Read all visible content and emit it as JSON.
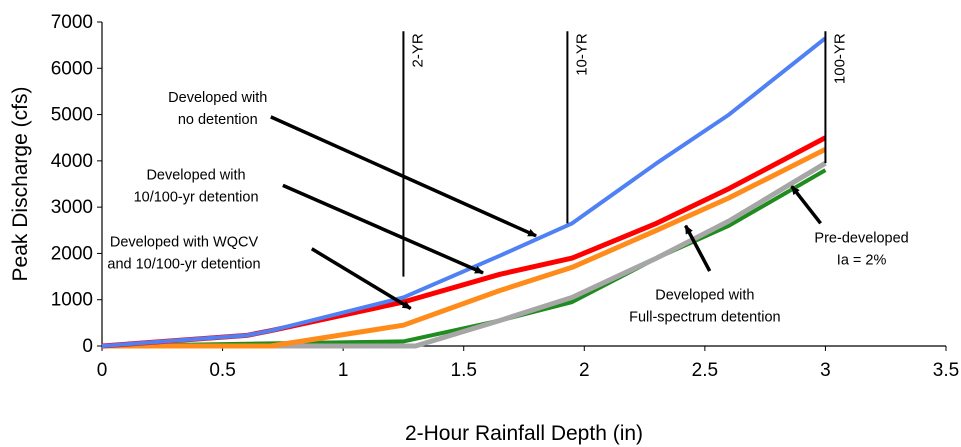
{
  "chart_data": {
    "type": "line",
    "xlabel": "2-Hour Rainfall Depth (in)",
    "ylabel": "Peak Discharge (cfs)",
    "xlim": [
      0,
      3.5
    ],
    "ylim": [
      0,
      7000
    ],
    "xticks": [
      "0",
      "0.5",
      "1",
      "1.5",
      "2",
      "2.5",
      "3",
      "3.5"
    ],
    "yticks": [
      "0",
      "1000",
      "2000",
      "3000",
      "4000",
      "5000",
      "6000",
      "7000"
    ],
    "grid": false,
    "legend": "none",
    "colors": {
      "no_detention": "#4F81F5",
      "ten_hundred": "#FF0000",
      "wqcv": "#FF8C1A",
      "full_spectrum": "#A6A6A6",
      "pre_developed": "#1E8C1E"
    },
    "series": [
      {
        "key": "pre_developed",
        "x": [
          0,
          1.25,
          1.65,
          1.95,
          2.3,
          2.6,
          3.0
        ],
        "y": [
          0,
          100,
          550,
          950,
          1900,
          2600,
          3800
        ]
      },
      {
        "key": "full_spectrum",
        "x": [
          0,
          1.3,
          1.65,
          1.95,
          2.3,
          2.6,
          3.0
        ],
        "y": [
          0,
          0,
          550,
          1050,
          1900,
          2700,
          3950
        ]
      },
      {
        "key": "wqcv",
        "x": [
          0,
          0.7,
          1.25,
          1.65,
          1.95,
          2.3,
          2.6,
          3.0
        ],
        "y": [
          0,
          0,
          450,
          1200,
          1700,
          2500,
          3200,
          4250
        ]
      },
      {
        "key": "ten_hundred",
        "x": [
          0,
          0.6,
          0.7,
          1.25,
          1.65,
          1.95,
          2.3,
          2.6,
          3.0
        ],
        "y": [
          0,
          230,
          330,
          950,
          1550,
          1900,
          2650,
          3400,
          4500
        ]
      },
      {
        "key": "no_detention",
        "x": [
          0,
          0.6,
          0.7,
          1.25,
          1.65,
          1.95,
          2.3,
          2.6,
          3.0
        ],
        "y": [
          0,
          230,
          330,
          1050,
          1950,
          2650,
          3950,
          5000,
          6650
        ]
      }
    ],
    "return_periods": [
      {
        "label": "2-YR",
        "x": 1.25,
        "y_low": 1500,
        "y_high": 6800
      },
      {
        "label": "10-YR",
        "x": 1.93,
        "y_low": 2650,
        "y_high": 6800
      },
      {
        "label": "100-YR",
        "x": 3.0,
        "y_low": 3950,
        "y_high": 6800
      }
    ],
    "annotations": [
      {
        "lines": [
          "Developed with",
          "no detention"
        ],
        "text_x": 0.48,
        "text_y": 5270,
        "arrow_from": [
          0.7,
          4950
        ],
        "arrow_to": [
          1.8,
          2380
        ]
      },
      {
        "lines": [
          "Developed with",
          "10/100-yr detention"
        ],
        "text_x": 0.39,
        "text_y": 3600,
        "arrow_from": [
          0.75,
          3470
        ],
        "arrow_to": [
          1.58,
          1580
        ]
      },
      {
        "lines": [
          "Developed with WQCV",
          "and 10/100-yr detention"
        ],
        "text_x": 0.34,
        "text_y": 2150,
        "arrow_from": [
          0.87,
          2100
        ],
        "arrow_to": [
          1.28,
          810
        ]
      },
      {
        "lines": [
          "Pre-developed",
          "Ia = 2%"
        ],
        "text_x": 3.15,
        "text_y": 2240,
        "arrow_from": [
          2.98,
          2650
        ],
        "arrow_to": [
          2.86,
          3450
        ]
      },
      {
        "lines": [
          "Developed with",
          "Full-spectrum detention"
        ],
        "text_x": 2.5,
        "text_y": 1000,
        "arrow_from": [
          2.52,
          1620
        ],
        "arrow_to": [
          2.42,
          2600
        ]
      }
    ]
  }
}
